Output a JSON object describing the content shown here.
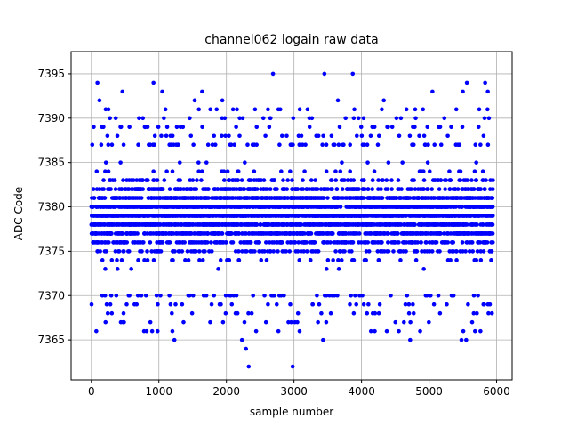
{
  "chart_data": {
    "type": "scatter",
    "title": "channel062 logain raw data",
    "xlabel": "sample number",
    "ylabel": "ADC Code",
    "xlim": [
      -300,
      6230
    ],
    "ylim": [
      7360.5,
      7397.5
    ],
    "xticks": [
      0,
      1000,
      2000,
      3000,
      4000,
      5000,
      6000
    ],
    "yticks": [
      7365,
      7370,
      7375,
      7380,
      7385,
      7390,
      7395
    ],
    "grid": true,
    "marker_color": "#0000ff",
    "series": [
      {
        "x_start": 0,
        "x_end": 5940,
        "n_points": 5940,
        "core_range": [
          7371,
          7386
        ],
        "sparse_values_upper": [
          7387,
          7388,
          7389,
          7390,
          7391,
          7392,
          7393,
          7394,
          7395
        ],
        "sparse_values_lower": [
          7362,
          7364,
          7365,
          7366,
          7367,
          7368,
          7369,
          7370
        ]
      }
    ],
    "outliers": [
      {
        "x": 90,
        "y": 7394
      },
      {
        "x": 120,
        "y": 7392
      },
      {
        "x": 460,
        "y": 7393
      },
      {
        "x": 470,
        "y": 7367
      },
      {
        "x": 920,
        "y": 7394
      },
      {
        "x": 980,
        "y": 7366
      },
      {
        "x": 1050,
        "y": 7393
      },
      {
        "x": 1200,
        "y": 7366
      },
      {
        "x": 1230,
        "y": 7365
      },
      {
        "x": 1530,
        "y": 7392
      },
      {
        "x": 1640,
        "y": 7393
      },
      {
        "x": 1940,
        "y": 7392
      },
      {
        "x": 2230,
        "y": 7365
      },
      {
        "x": 2290,
        "y": 7364
      },
      {
        "x": 2330,
        "y": 7362
      },
      {
        "x": 2690,
        "y": 7395
      },
      {
        "x": 2980,
        "y": 7362
      },
      {
        "x": 3430,
        "y": 7365
      },
      {
        "x": 3450,
        "y": 7395
      },
      {
        "x": 3650,
        "y": 7392
      },
      {
        "x": 3870,
        "y": 7395
      },
      {
        "x": 4330,
        "y": 7392
      },
      {
        "x": 4720,
        "y": 7365
      },
      {
        "x": 5050,
        "y": 7393
      },
      {
        "x": 5480,
        "y": 7365
      },
      {
        "x": 5500,
        "y": 7393
      },
      {
        "x": 5550,
        "y": 7365
      },
      {
        "x": 5560,
        "y": 7394
      },
      {
        "x": 5830,
        "y": 7394
      },
      {
        "x": 5870,
        "y": 7393
      }
    ]
  }
}
